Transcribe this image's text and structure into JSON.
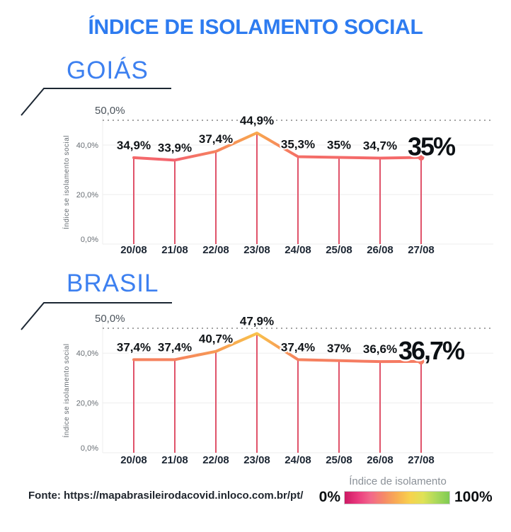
{
  "header": {
    "title": "ÍNDICE DE ISOLAMENTO SOCIAL"
  },
  "colors": {
    "accent_blue": "#2d7bf0",
    "region_blue": "#3d80f0",
    "drop_line_red": "#e0536a",
    "decor_dark": "#1c2733",
    "label_dark": "#101418",
    "axis_gray": "#676d73",
    "ref_gray": "#4b535b",
    "grid_gray": "#ededed",
    "dotted_gray": "#a3a3a3"
  },
  "footer": {
    "source": "Fonte: https://mapabrasileirodacovid.inloco.com.br/pt/"
  },
  "legend": {
    "title": "Índice de isolamento",
    "min_label": "0%",
    "max_label": "100%",
    "gradient": [
      "#cc1964",
      "#ea3a7e",
      "#f2688b",
      "#f58a68",
      "#f8ae53",
      "#f7d24e",
      "#dfe257",
      "#abd95b",
      "#7fcb53"
    ]
  },
  "chart_data": [
    {
      "type": "line",
      "region": "GOIÁS",
      "x": [
        "20/08",
        "21/08",
        "22/08",
        "23/08",
        "24/08",
        "25/08",
        "26/08",
        "27/08"
      ],
      "values": [
        34.9,
        33.9,
        37.4,
        44.9,
        35.3,
        35.0,
        34.7,
        35.0
      ],
      "point_labels": [
        "34,9%",
        "33,9%",
        "37,4%",
        "44,9%",
        "35,3%",
        "35%",
        "34,7%",
        ""
      ],
      "final_label": "35%",
      "point_colors": [
        "#f4696a",
        "#f4646e",
        "#f5825e",
        "#f8a94d",
        "#f46e67",
        "#f46b69",
        "#f46869",
        "#f46b69"
      ],
      "ylabel": "Índice se isolamento social",
      "yticks": [
        {
          "value": 0,
          "label": "0,0%"
        },
        {
          "value": 20,
          "label": "20,0%"
        },
        {
          "value": 40,
          "label": "40,0%"
        }
      ],
      "ref_line": {
        "value": 50,
        "label": "50,0%"
      },
      "ylim": [
        0,
        50
      ],
      "grid": true,
      "legend_position": "none"
    },
    {
      "type": "line",
      "region": "BRASIL",
      "x": [
        "20/08",
        "21/08",
        "22/08",
        "23/08",
        "24/08",
        "25/08",
        "26/08",
        "27/08"
      ],
      "values": [
        37.4,
        37.4,
        40.7,
        47.9,
        37.4,
        37.0,
        36.6,
        36.7
      ],
      "point_labels": [
        "37,4%",
        "37,4%",
        "40,7%",
        "47,9%",
        "37,4%",
        "37%",
        "36,6%",
        ""
      ],
      "final_label": "36,7%",
      "point_colors": [
        "#f5825e",
        "#f5825e",
        "#f79a54",
        "#f9c34b",
        "#f5825e",
        "#f57e61",
        "#f57a63",
        "#f57c62"
      ],
      "ylabel": "Índice se isolamento social",
      "yticks": [
        {
          "value": 0,
          "label": "0,0%"
        },
        {
          "value": 20,
          "label": "20,0%"
        },
        {
          "value": 40,
          "label": "40,0%"
        }
      ],
      "ref_line": {
        "value": 50,
        "label": "50,0%"
      },
      "ylim": [
        0,
        50
      ],
      "grid": true,
      "legend_position": "none"
    }
  ]
}
